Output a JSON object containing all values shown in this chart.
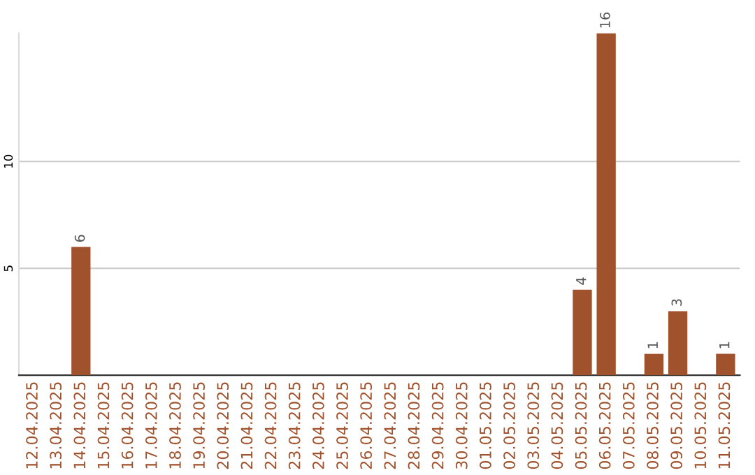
{
  "chart_data": {
    "type": "bar",
    "categories": [
      "12.04.2025",
      "13.04.2025",
      "14.04.2025",
      "15.04.2025",
      "16.04.2025",
      "17.04.2025",
      "18.04.2025",
      "19.04.2025",
      "20.04.2025",
      "21.04.2025",
      "22.04.2025",
      "23.04.2025",
      "24.04.2025",
      "25.04.2025",
      "26.04.2025",
      "27.04.2025",
      "28.04.2025",
      "29.04.2025",
      "30.04.2025",
      "01.05.2025",
      "02.05.2025",
      "03.05.2025",
      "04.05.2025",
      "05.05.2025",
      "06.05.2025",
      "07.05.2025",
      "08.05.2025",
      "09.05.2025",
      "10.05.2025",
      "11.05.2025"
    ],
    "values": [
      0,
      0,
      6,
      0,
      0,
      0,
      0,
      0,
      0,
      0,
      0,
      0,
      0,
      0,
      0,
      0,
      0,
      0,
      0,
      0,
      0,
      0,
      0,
      4,
      16,
      0,
      1,
      3,
      0,
      1
    ],
    "value_labels": [
      null,
      null,
      "6",
      null,
      null,
      null,
      null,
      null,
      null,
      null,
      null,
      null,
      null,
      null,
      null,
      null,
      null,
      null,
      null,
      null,
      null,
      null,
      null,
      "4",
      "16",
      null,
      "1",
      "3",
      null,
      "1"
    ],
    "color": "#a0522d",
    "ylim": [
      0,
      16
    ],
    "yticks": [
      5,
      10
    ],
    "grid": "y"
  }
}
